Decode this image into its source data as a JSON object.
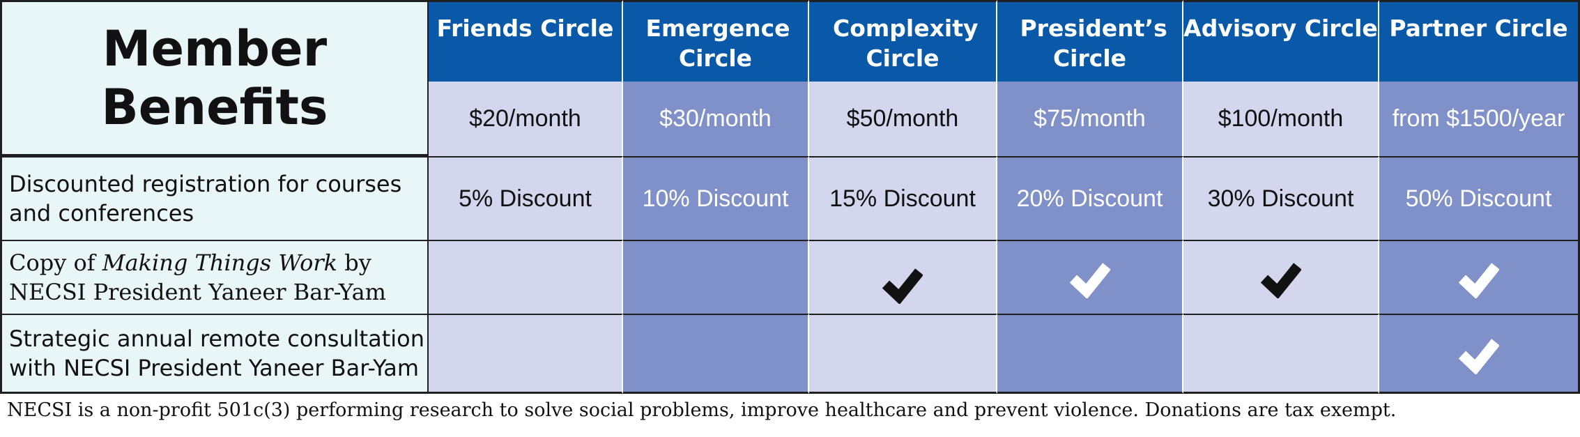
{
  "title": {
    "line1": "Member",
    "line2": "Benefits"
  },
  "tiers": [
    {
      "name": "Friends Circle",
      "price": "$20/month",
      "discount": "5% Discount"
    },
    {
      "name": "Emergence Circle",
      "price": "$30/month",
      "discount": "10% Discount"
    },
    {
      "name": "Complexity Circle",
      "price": "$50/month",
      "discount": "15% Discount"
    },
    {
      "name": "President’s Circle",
      "price": "$75/month",
      "discount": "20% Discount"
    },
    {
      "name": "Advisory Circle",
      "price": "$100/month",
      "discount": "30% Discount"
    },
    {
      "name": "Partner Circle",
      "price": "from $1500/year",
      "discount": "50% Discount"
    }
  ],
  "benefits": {
    "discount_label": "Discounted registration for courses and conferences",
    "book_label": {
      "prefix": "Copy of ",
      "title": "Making Things Work",
      "suffix_line1": " by",
      "line2": "NECSI President Yaneer Bar-Yam"
    },
    "book_included": [
      false,
      false,
      true,
      true,
      true,
      true
    ],
    "consultation_label": {
      "line1": "Strategic annual remote consultation",
      "line2": "with NECSI President Yaneer Bar-Yam"
    },
    "consultation_included": [
      false,
      false,
      false,
      false,
      false,
      true
    ]
  },
  "footnote": "NECSI is a non-profit 501c(3) performing research to solve social problems, improve healthcare and prevent violence. Donations are tax exempt.",
  "colors": {
    "header_blue": "#0a58a8",
    "light_column": "#d3d6ec",
    "dark_column": "#8090c9",
    "label_background": "#e9f6f7"
  }
}
